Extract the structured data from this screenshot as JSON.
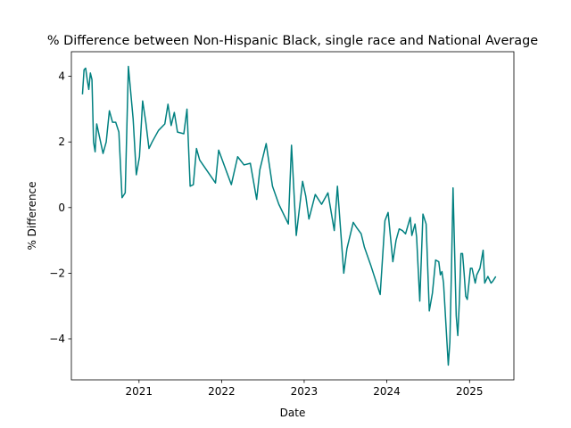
{
  "chart_data": {
    "type": "line",
    "title": "% Difference between Non-Hispanic Black, single race and National Average",
    "xlabel": "Date",
    "ylabel": "% Difference",
    "x_ticks": [
      "2021",
      "2022",
      "2023",
      "2024",
      "2025"
    ],
    "y_ticks": [
      -4,
      -2,
      0,
      2,
      4
    ],
    "xlim": [
      "2020-03-08",
      "2025-07-16"
    ],
    "ylim": [
      -5.25,
      4.75
    ],
    "grid": false,
    "color": "#008080",
    "series": [
      {
        "name": "",
        "x": [
          "2020-04-26",
          "2020-05-03",
          "2020-05-10",
          "2020-05-17",
          "2020-05-24",
          "2020-05-31",
          "2020-06-07",
          "2020-06-14",
          "2020-06-21",
          "2020-06-28",
          "2020-07-12",
          "2020-07-26",
          "2020-08-09",
          "2020-08-23",
          "2020-09-06",
          "2020-09-20",
          "2020-10-04",
          "2020-10-18",
          "2020-11-01",
          "2020-11-15",
          "2020-12-06",
          "2020-12-20",
          "2021-01-03",
          "2021-01-17",
          "2021-01-31",
          "2021-02-14",
          "2021-02-28",
          "2021-03-28",
          "2021-04-25",
          "2021-05-09",
          "2021-05-23",
          "2021-06-06",
          "2021-06-20",
          "2021-07-18",
          "2021-08-01",
          "2021-08-15",
          "2021-08-29",
          "2021-09-12",
          "2021-09-26",
          "2021-12-05",
          "2021-12-19",
          "2022-02-13",
          "2022-03-13",
          "2022-04-10",
          "2022-05-08",
          "2022-06-05",
          "2022-06-19",
          "2022-07-17",
          "2022-08-14",
          "2022-09-11",
          "2022-10-23",
          "2022-11-06",
          "2022-11-27",
          "2022-12-25",
          "2023-01-08",
          "2023-01-22",
          "2023-02-19",
          "2023-03-19",
          "2023-04-16",
          "2023-05-14",
          "2023-05-28",
          "2023-06-25",
          "2023-07-09",
          "2023-08-06",
          "2023-08-20",
          "2023-09-10",
          "2023-09-24",
          "2023-10-22",
          "2023-12-03",
          "2023-12-24",
          "2024-01-07",
          "2024-01-28",
          "2024-02-11",
          "2024-02-25",
          "2024-03-10",
          "2024-03-24",
          "2024-04-14",
          "2024-04-21",
          "2024-05-05",
          "2024-05-12",
          "2024-05-26",
          "2024-06-09",
          "2024-06-23",
          "2024-07-07",
          "2024-07-21",
          "2024-08-04",
          "2024-08-18",
          "2024-08-25",
          "2024-09-01",
          "2024-09-08",
          "2024-09-29",
          "2024-10-06",
          "2024-10-13",
          "2024-10-20",
          "2024-11-03",
          "2024-11-10",
          "2024-11-17",
          "2024-11-24",
          "2024-12-01",
          "2024-12-08",
          "2024-12-15",
          "2024-12-22",
          "2025-01-05",
          "2025-01-12",
          "2025-01-26",
          "2025-02-02",
          "2025-02-16",
          "2025-03-02",
          "2025-03-09",
          "2025-03-23",
          "2025-03-30",
          "2025-04-06",
          "2025-04-13",
          "2025-04-27"
        ],
        "y": [
          3.45,
          4.2,
          4.25,
          3.9,
          3.6,
          4.1,
          3.9,
          2.0,
          1.7,
          2.55,
          2.1,
          1.65,
          2.0,
          2.95,
          2.6,
          2.6,
          2.3,
          0.3,
          0.45,
          4.3,
          2.7,
          1.0,
          1.55,
          3.25,
          2.6,
          1.8,
          2.0,
          2.35,
          2.55,
          3.15,
          2.5,
          2.9,
          2.3,
          2.25,
          3.0,
          0.65,
          0.7,
          1.8,
          1.45,
          0.75,
          1.75,
          0.7,
          1.55,
          1.3,
          1.35,
          0.25,
          1.15,
          1.95,
          0.65,
          0.1,
          -0.5,
          1.9,
          -0.85,
          0.8,
          0.35,
          -0.35,
          0.4,
          0.1,
          0.45,
          -0.7,
          0.65,
          -2.0,
          -1.25,
          -0.45,
          -0.6,
          -0.8,
          -1.2,
          -1.75,
          -2.65,
          -0.4,
          -0.15,
          -1.65,
          -1.0,
          -0.65,
          -0.7,
          -0.8,
          -0.3,
          -0.85,
          -0.5,
          -0.9,
          -2.85,
          -0.2,
          -0.5,
          -3.15,
          -2.6,
          -1.6,
          -1.65,
          -2.05,
          -1.95,
          -2.3,
          -4.8,
          -4.1,
          -1.9,
          0.6,
          -3.3,
          -3.9,
          -2.85,
          -1.4,
          -1.4,
          -2.0,
          -2.7,
          -2.8,
          -1.85,
          -1.85,
          -2.3,
          -2.05,
          -1.85,
          -1.3,
          -2.3,
          -2.1,
          -2.2,
          -2.3,
          -2.25,
          -2.1
        ]
      }
    ]
  }
}
